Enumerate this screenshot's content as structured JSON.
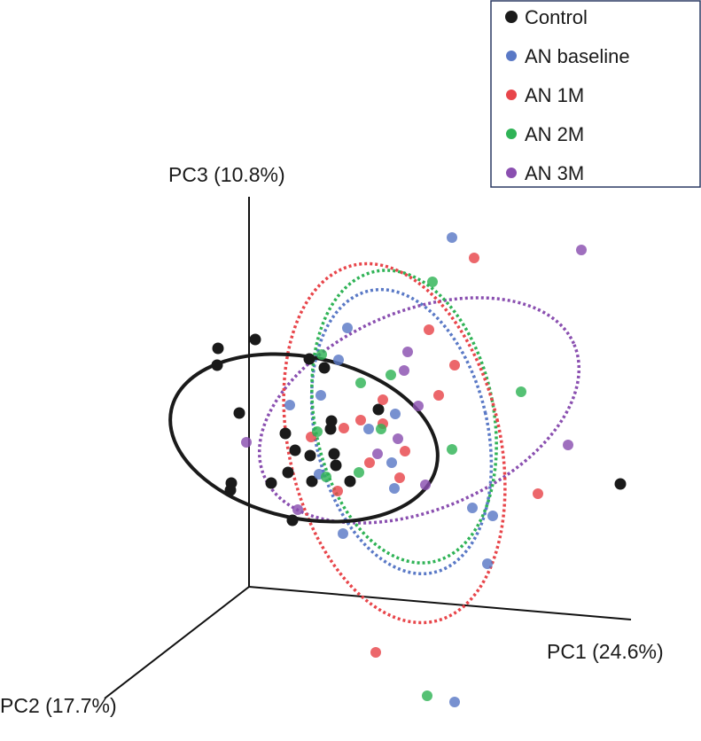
{
  "chart_data": {
    "type": "scatter",
    "subtype": "3d-pca-projection",
    "axes": {
      "pc1": "PC1 (24.6%)",
      "pc2": "PC2 (17.7%)",
      "pc3": "PC3 (10.8%)"
    },
    "legend": {
      "placement": "top-right",
      "entries": [
        {
          "key": "control",
          "label": "Control",
          "color": "#1a1a1a"
        },
        {
          "key": "baseline",
          "label": "AN baseline",
          "color": "#5a79c6"
        },
        {
          "key": "m1",
          "label": "AN 1M",
          "color": "#e8454a"
        },
        {
          "key": "m2",
          "label": "AN 2M",
          "color": "#2fb356"
        },
        {
          "key": "m3",
          "label": "AN 3M",
          "color": "#8a4fb0"
        }
      ]
    },
    "ellipse_style": {
      "control": "solid",
      "baseline": "dotted",
      "m1": "dotted",
      "m2": "dotted",
      "m3": "dotted"
    }
  }
}
